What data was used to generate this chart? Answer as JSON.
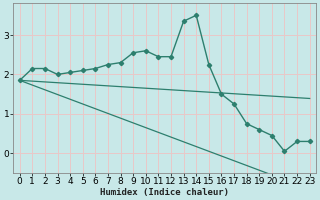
{
  "xlabel": "Humidex (Indice chaleur)",
  "x": [
    0,
    1,
    2,
    3,
    4,
    5,
    6,
    7,
    8,
    9,
    10,
    11,
    12,
    13,
    14,
    15,
    16,
    17,
    18,
    19,
    20,
    21,
    22,
    23
  ],
  "y_curve": [
    1.85,
    2.15,
    2.15,
    2.0,
    2.05,
    2.1,
    2.15,
    2.25,
    2.3,
    2.55,
    2.6,
    2.45,
    2.45,
    3.35,
    3.5,
    2.25,
    1.5,
    1.25,
    0.75,
    0.6,
    0.45,
    0.05,
    0.3,
    0.3
  ],
  "y_line1": [
    1.85,
    1.73,
    1.61,
    1.49,
    1.37,
    1.25,
    1.13,
    1.01,
    0.89,
    0.77,
    0.65,
    0.53,
    0.41,
    0.29,
    0.17,
    0.05,
    -0.07,
    -0.19,
    -0.31,
    -0.43,
    -0.55,
    -0.67,
    -0.79,
    -0.91
  ],
  "y_line2": [
    1.85,
    1.83,
    1.81,
    1.79,
    1.77,
    1.75,
    1.73,
    1.71,
    1.69,
    1.67,
    1.65,
    1.63,
    1.61,
    1.59,
    1.57,
    1.55,
    1.53,
    1.51,
    1.49,
    1.47,
    1.45,
    1.43,
    1.41,
    1.39
  ],
  "color": "#2d7f6e",
  "bg_color": "#c8e8e8",
  "grid_color_major": "#e8c8c8",
  "ylim": [
    -0.5,
    3.8
  ],
  "xlim": [
    -0.5,
    23.5
  ],
  "yticks": [
    0,
    1,
    2,
    3
  ],
  "xticks": [
    0,
    1,
    2,
    3,
    4,
    5,
    6,
    7,
    8,
    9,
    10,
    11,
    12,
    13,
    14,
    15,
    16,
    17,
    18,
    19,
    20,
    21,
    22,
    23
  ],
  "xlabel_fontsize": 6.5,
  "tick_fontsize": 6.5
}
